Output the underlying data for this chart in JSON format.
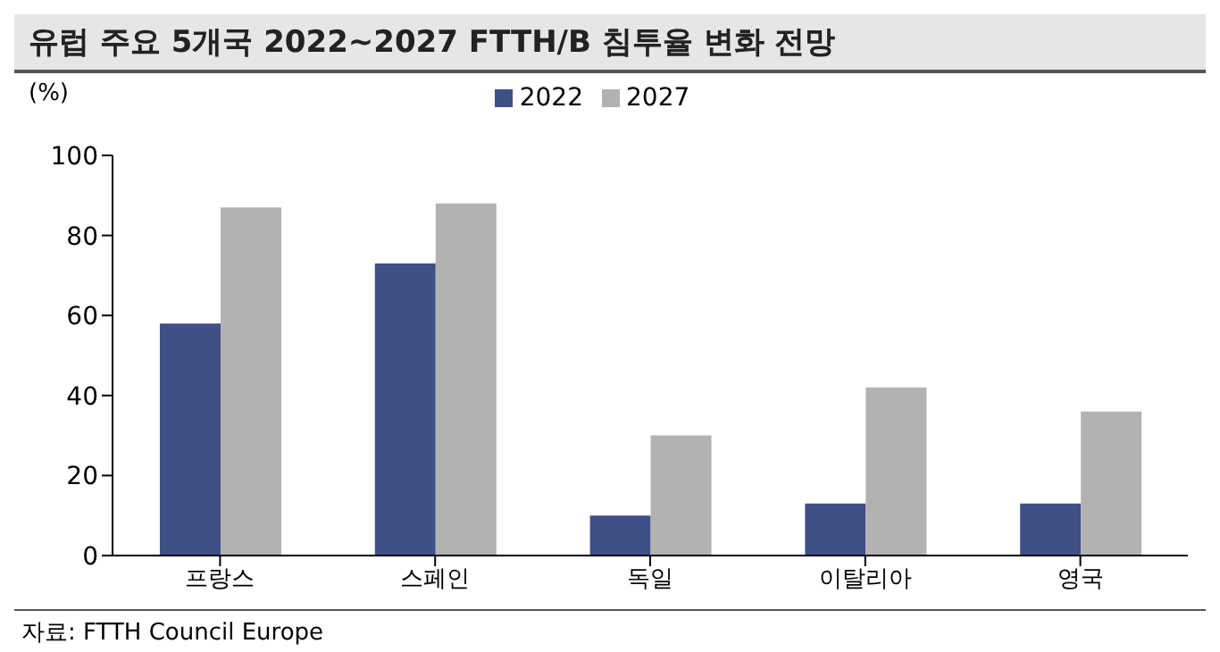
{
  "chart_data": {
    "type": "bar",
    "title": "유럽 주요 5개국 2022~2027 FTTH/B 침투율 변화 전망",
    "ylabel": "(%)",
    "categories": [
      "프랑스",
      "스페인",
      "독일",
      "이탈리아",
      "영국"
    ],
    "series": [
      {
        "name": "2022",
        "color": "#404f86",
        "values": [
          58,
          73,
          10,
          13,
          13
        ]
      },
      {
        "name": "2027",
        "color": "#b2b2b2",
        "values": [
          87,
          88,
          30,
          42,
          36
        ]
      }
    ],
    "ylim": [
      0,
      100
    ],
    "yticks": [
      0,
      20,
      40,
      60,
      80,
      100
    ],
    "grid": false,
    "legend": "top",
    "annotations": [
      "자료: FTTH Council Europe"
    ]
  }
}
